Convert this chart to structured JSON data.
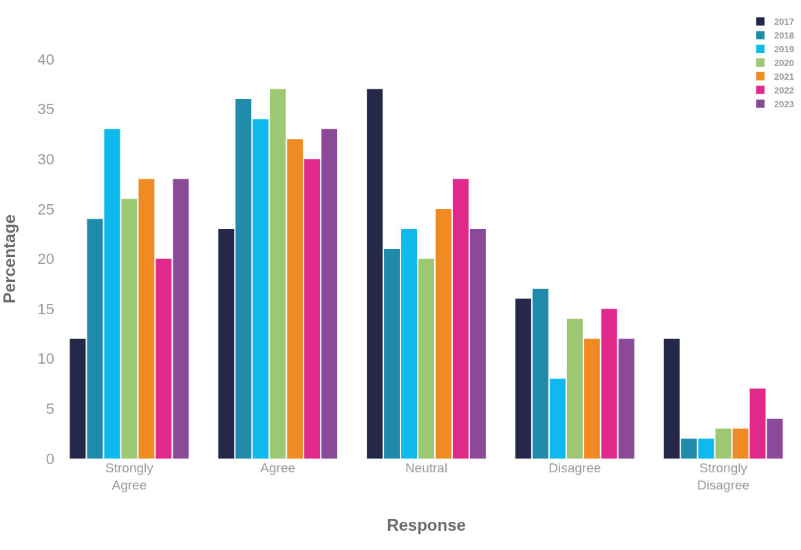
{
  "chart_data": {
    "type": "bar",
    "xlabel": "Response",
    "ylabel": "Percentage",
    "categories": [
      "Strongly Agree",
      "Agree",
      "Neutral",
      "Disagree",
      "Strongly Disagree"
    ],
    "series": [
      {
        "name": "2017",
        "color": "#262849",
        "values": [
          12,
          23,
          37,
          16,
          12
        ]
      },
      {
        "name": "2018",
        "color": "#1f8aaa",
        "values": [
          24,
          36,
          21,
          17,
          2
        ]
      },
      {
        "name": "2019",
        "color": "#10b9ec",
        "values": [
          33,
          34,
          23,
          8,
          2
        ]
      },
      {
        "name": "2020",
        "color": "#9dc872",
        "values": [
          26,
          37,
          20,
          14,
          3
        ]
      },
      {
        "name": "2021",
        "color": "#f08a22",
        "values": [
          28,
          32,
          25,
          12,
          3
        ]
      },
      {
        "name": "2022",
        "color": "#e0298a",
        "values": [
          20,
          30,
          28,
          15,
          7
        ]
      },
      {
        "name": "2023",
        "color": "#8b4a97",
        "values": [
          28,
          33,
          23,
          12,
          4
        ]
      }
    ],
    "ylim": [
      0,
      40
    ],
    "yticks": [
      0,
      5,
      10,
      15,
      20,
      25,
      30,
      35,
      40
    ],
    "legend": "top right"
  }
}
